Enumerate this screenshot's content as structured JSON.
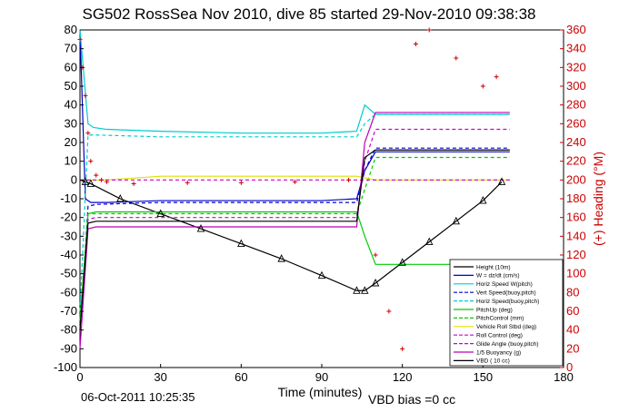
{
  "chart_data": {
    "type": "line",
    "title": "SG502 RossSea Nov 2010, dive 85 started 29-Nov-2010 09:38:38",
    "xlabel": "Time (minutes)",
    "ylabel_right": "(+) Heading (°M)",
    "xlim": [
      0,
      180
    ],
    "ylim": [
      -100,
      80
    ],
    "ylim_right": [
      0,
      360
    ],
    "xticks": [
      "0",
      "30",
      "60",
      "90",
      "120",
      "150",
      "180"
    ],
    "yticks_left": [
      "80",
      "70",
      "60",
      "50",
      "40",
      "30",
      "20",
      "10",
      "0",
      "-10",
      "-20",
      "-30",
      "-40",
      "-50",
      "-60",
      "-70",
      "-80",
      "-90",
      "-100"
    ],
    "yticks_right": [
      "360",
      "340",
      "320",
      "300",
      "280",
      "260",
      "240",
      "220",
      "200",
      "180",
      "160",
      "140",
      "120",
      "100",
      "80",
      "60",
      "40",
      "20",
      "0"
    ],
    "footer_date": "06-Oct-2011 10:25:35",
    "footer_note": "VBD bias =0 cc",
    "legend_position": "bottom-right",
    "colors": {
      "depth": "#000000",
      "vert_speed": "#0000cc",
      "horz_speed": "#00cccc",
      "pitch": "#00cc00",
      "roll": "#e0e000",
      "roll_control": "#cc00cc",
      "buoyancy": "#bb00bb",
      "vbd": "#000000",
      "heading": "#cc0000"
    },
    "legend": [
      {
        "label": "Height (10m)",
        "color": "#000000",
        "style": "solid"
      },
      {
        "label": "W = dz/dt (cm/s)",
        "color": "#0000cc",
        "style": "solid"
      },
      {
        "label": "Horiz Speed W(pitch)",
        "color": "#00cccc",
        "style": "solid"
      },
      {
        "label": "Vert Speed(buoy,pitch)",
        "color": "#0000cc",
        "style": "dashed"
      },
      {
        "label": "Horiz Speed(buoy,pitch)",
        "color": "#00cccc",
        "style": "dashed"
      },
      {
        "label": "PitchUp (deg)",
        "color": "#00cc00",
        "style": "solid"
      },
      {
        "label": "PitchControl (mm)",
        "color": "#00cc00",
        "style": "dashed"
      },
      {
        "label": "Vehicle Roll Stbd (deg)",
        "color": "#e0e000",
        "style": "solid"
      },
      {
        "label": "Roll Control (deg)",
        "color": "#cc00cc",
        "style": "dashed"
      },
      {
        "label": "Glide Angle (buoy,pitch)",
        "color": "#cc00cc",
        "style": "dashed"
      },
      {
        "label": "1/5 Buoyancy (g)",
        "color": "#bb00bb",
        "style": "solid"
      },
      {
        "label": "VBD ( 10 cc)",
        "color": "#000000",
        "style": "solid"
      }
    ],
    "series": [
      {
        "name": "Height (10m)",
        "x": [
          0,
          2,
          4,
          15,
          30,
          45,
          60,
          75,
          90,
          103,
          106,
          110,
          120,
          130,
          140,
          150,
          157
        ],
        "y": [
          0,
          -1,
          -2,
          -10,
          -18,
          -26,
          -34,
          -42,
          -51,
          -59,
          -59,
          -55,
          -44,
          -33,
          -22,
          -11,
          -1
        ]
      },
      {
        "name": "W = dz/dt (cm/s)",
        "x": [
          0,
          2,
          4,
          10,
          30,
          60,
          90,
          103,
          106,
          110,
          160
        ],
        "y": [
          80,
          -10,
          -12,
          -12,
          -11,
          -11,
          -11,
          -10,
          5,
          15,
          15
        ]
      },
      {
        "name": "Horiz Speed W(pitch)",
        "x": [
          0,
          3,
          5,
          10,
          30,
          60,
          90,
          103,
          106,
          110,
          160
        ],
        "y": [
          80,
          30,
          28,
          27,
          26,
          25,
          25,
          26,
          40,
          35,
          35
        ]
      },
      {
        "name": "Vert Speed(buoy,pitch)",
        "x": [
          0,
          3,
          6,
          30,
          60,
          90,
          103,
          106,
          110,
          160
        ],
        "y": [
          -80,
          -14,
          -13,
          -12,
          -12,
          -12,
          -12,
          5,
          17,
          17
        ]
      },
      {
        "name": "Horiz Speed(buoy,pitch)",
        "x": [
          0,
          3,
          6,
          30,
          60,
          90,
          103,
          106,
          110,
          160
        ],
        "y": [
          -70,
          24,
          24,
          23,
          23,
          23,
          23,
          30,
          35,
          35
        ]
      },
      {
        "name": "PitchUp (deg)",
        "x": [
          0,
          3,
          6,
          30,
          60,
          90,
          103,
          106,
          110,
          160
        ],
        "y": [
          -75,
          -18,
          -17,
          -17,
          -17,
          -17,
          -17,
          -30,
          -45,
          -45
        ]
      },
      {
        "name": "PitchControl (mm)",
        "x": [
          0,
          3,
          6,
          30,
          60,
          90,
          103,
          106,
          110,
          160
        ],
        "y": [
          -80,
          -18,
          -18,
          -18,
          -18,
          -18,
          -18,
          -5,
          12,
          12
        ]
      },
      {
        "name": "Vehicle Roll Stbd (deg)",
        "x": [
          0,
          10,
          30,
          60,
          90,
          103,
          110,
          160
        ],
        "y": [
          0,
          0,
          2,
          2,
          2,
          2,
          0,
          0
        ]
      },
      {
        "name": "Roll Control (deg)",
        "x": [
          0,
          30,
          60,
          90,
          103,
          110,
          160
        ],
        "y": [
          0,
          0,
          0,
          0,
          0,
          0,
          0
        ]
      },
      {
        "name": "Glide Angle (buoy,pitch)",
        "x": [
          0,
          3,
          6,
          30,
          60,
          90,
          103,
          106,
          110,
          160
        ],
        "y": [
          -80,
          -21,
          -20,
          -20,
          -20,
          -20,
          -20,
          10,
          27,
          27
        ]
      },
      {
        "name": "1/5 Buoyancy (g)",
        "x": [
          0,
          3,
          6,
          30,
          60,
          90,
          103,
          106,
          110,
          160
        ],
        "y": [
          -90,
          -26,
          -25,
          -25,
          -25,
          -25,
          -25,
          20,
          36,
          36
        ]
      },
      {
        "name": "VBD ( 10 cc)",
        "x": [
          0,
          3,
          6,
          30,
          60,
          90,
          103,
          106,
          110,
          160
        ],
        "y": [
          -80,
          -23,
          -22,
          -22,
          -22,
          -22,
          -22,
          12,
          16,
          16
        ]
      }
    ],
    "heading_series": {
      "name": "Heading",
      "x": [
        0,
        1,
        2,
        3,
        4,
        6,
        8,
        10,
        20,
        40,
        60,
        80,
        100,
        110,
        115,
        120,
        125,
        130,
        140,
        150,
        155
      ],
      "y": [
        350,
        320,
        290,
        250,
        220,
        205,
        200,
        198,
        196,
        197,
        197,
        198,
        200,
        120,
        60,
        20,
        345,
        360,
        330,
        300,
        310
      ]
    }
  }
}
